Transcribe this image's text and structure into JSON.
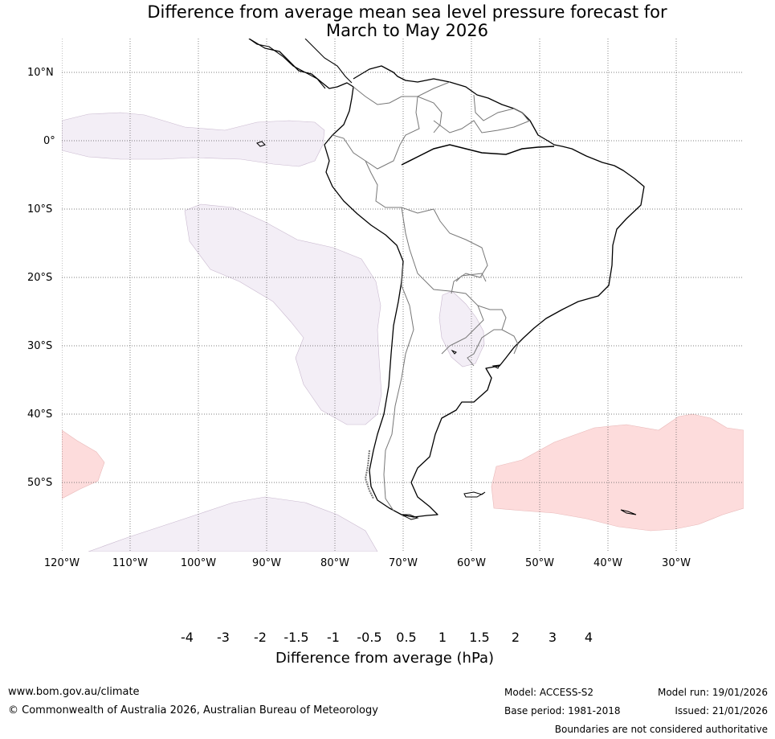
{
  "title_line1": "Difference from average mean sea level pressure forecast for",
  "title_line2": "March to May 2026",
  "latitude_labels": [
    "10°N",
    "0°",
    "10°S",
    "20°S",
    "30°S",
    "40°S",
    "50°S"
  ],
  "longitude_labels": [
    "120°W",
    "110°W",
    "100°W",
    "90°W",
    "80°W",
    "70°W",
    "60°W",
    "50°W",
    "40°W",
    "30°W"
  ],
  "legend": {
    "title": "Difference from average (hPa)",
    "ticks": [
      "-4",
      "-3",
      "-2",
      "-1.5",
      "-1",
      "-0.5",
      "0.5",
      "1",
      "1.5",
      "2",
      "3",
      "4"
    ],
    "colors": {
      "below_-4": "#0e6e5d",
      "-4_to_-3": "#1f9399",
      "-3_to_-2": "#68aad1",
      "-2_to_-1.5": "#a5b9da",
      "-1.5_to_-1": "#d2d2e6",
      "-1_to_-0.5": "#f3eef6",
      "-0.5_to_0.5": "#ffffff",
      "0.5_to_1": "#fddcdc",
      "1_to_1.5": "#f9a0b9",
      "1.5_to_2": "#df3c9a",
      "2_to_3": "#ae017e",
      "3_to_4": "#7a0177",
      "above_4": "#49006a"
    }
  },
  "anomaly_regions": [
    {
      "name": "equatorial east Pacific",
      "category": "-1_to_-0.5"
    },
    {
      "name": "southeast Pacific off Peru and Chile",
      "category": "-1_to_-0.5"
    },
    {
      "name": "far south Pacific",
      "category": "-1_to_-0.5"
    },
    {
      "name": "Paraguay and northern Argentina",
      "category": "-1_to_-0.5"
    },
    {
      "name": "southwest Pacific edge",
      "category": "0.5_to_1"
    },
    {
      "name": "South Atlantic",
      "category": "0.5_to_1"
    }
  ],
  "footer": {
    "website": "www.bom.gov.au/climate",
    "copyright": "© Commonwealth of Australia 2026, Australian Bureau of Meteorology",
    "model": "Model: ACCESS-S2",
    "base_period": "Base period: 1981-2018",
    "model_run": "Model run: 19/01/2026",
    "issued": "Issued: 21/01/2026",
    "disclaimer": "Boundaries are not considered authoritative"
  }
}
